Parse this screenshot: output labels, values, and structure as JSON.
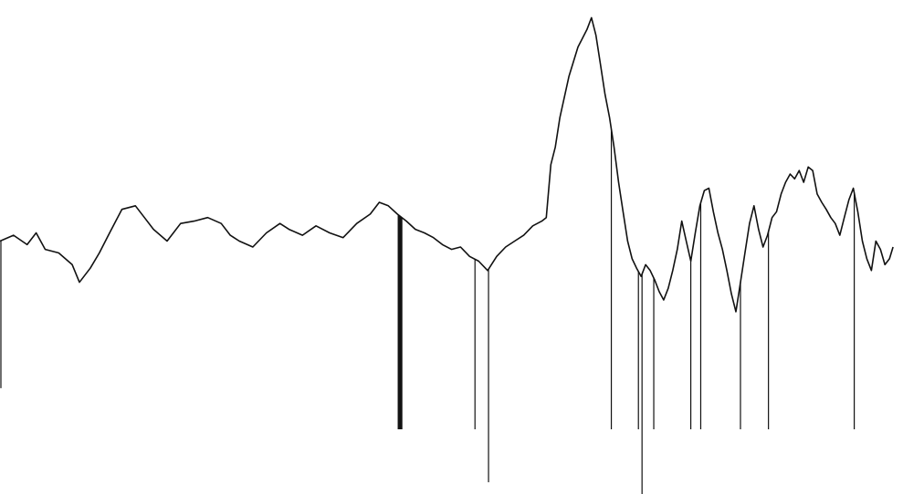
{
  "chart_data": {
    "type": "line",
    "title": "",
    "xlabel": "",
    "ylabel": "",
    "xlim": [
      0,
      1000
    ],
    "ylim": [
      -1.6,
      2.6
    ],
    "grid": false,
    "legend": "none",
    "colors": {
      "line": "#111111",
      "spike": "#111111",
      "background": "#ffffff"
    },
    "series": [
      {
        "x": [
          0,
          15,
          30,
          40,
          50,
          65,
          80,
          88,
          100,
          110,
          120,
          135,
          150,
          160,
          170,
          185,
          200,
          215,
          230,
          245,
          255,
          265,
          280,
          295,
          310,
          320,
          335,
          350,
          365,
          380,
          395,
          410,
          420,
          430,
          440,
          450,
          460,
          470,
          480,
          490,
          500,
          510,
          520,
          530,
          540,
          550,
          560,
          570,
          580,
          590,
          600,
          605,
          610,
          615,
          620,
          630,
          640,
          650,
          655,
          660,
          665,
          670,
          675,
          680,
          685,
          690,
          695,
          700,
          705,
          710,
          715,
          720,
          725,
          730,
          735,
          740,
          745,
          750,
          755,
          760,
          765,
          770,
          775,
          780,
          785,
          790,
          795,
          800,
          805,
          810,
          815,
          820,
          825,
          830,
          835,
          840,
          845,
          850,
          855,
          860,
          865,
          870,
          875,
          880,
          885,
          890,
          895,
          900,
          905,
          910,
          915,
          920,
          925,
          930,
          935,
          940,
          945,
          950,
          955,
          960,
          965,
          970,
          975,
          980,
          985,
          989
        ],
        "y": [
          0.55,
          0.6,
          0.52,
          0.62,
          0.48,
          0.45,
          0.35,
          0.2,
          0.32,
          0.45,
          0.6,
          0.82,
          0.85,
          0.75,
          0.65,
          0.55,
          0.7,
          0.72,
          0.75,
          0.7,
          0.6,
          0.55,
          0.5,
          0.62,
          0.7,
          0.65,
          0.6,
          0.68,
          0.62,
          0.58,
          0.7,
          0.78,
          0.88,
          0.85,
          0.78,
          0.72,
          0.65,
          0.62,
          0.58,
          0.52,
          0.48,
          0.5,
          0.42,
          0.38,
          0.3,
          0.42,
          0.5,
          0.55,
          0.6,
          0.68,
          0.72,
          0.75,
          1.2,
          1.35,
          1.6,
          1.95,
          2.2,
          2.35,
          2.45,
          2.3,
          2.05,
          1.8,
          1.6,
          1.35,
          1.05,
          0.8,
          0.55,
          0.4,
          0.32,
          0.25,
          0.35,
          0.3,
          0.22,
          0.12,
          0.05,
          0.15,
          0.3,
          0.48,
          0.72,
          0.55,
          0.38,
          0.62,
          0.85,
          0.98,
          1.0,
          0.8,
          0.62,
          0.48,
          0.3,
          0.1,
          -0.05,
          0.2,
          0.45,
          0.7,
          0.85,
          0.65,
          0.5,
          0.6,
          0.75,
          0.8,
          0.95,
          1.05,
          1.12,
          1.08,
          1.15,
          1.05,
          1.18,
          1.15,
          0.95,
          0.88,
          0.82,
          0.75,
          0.7,
          0.6,
          0.75,
          0.9,
          1.0,
          0.8,
          0.55,
          0.4,
          0.3,
          0.55,
          0.48,
          0.35,
          0.4,
          0.5
        ]
      }
    ],
    "spikes": [
      {
        "x": 1,
        "y": -0.7
      },
      {
        "x": 441,
        "y": -1.05
      },
      {
        "x": 442,
        "y": -1.05
      },
      {
        "x": 443,
        "y": -1.05
      },
      {
        "x": 444,
        "y": -1.05
      },
      {
        "x": 445,
        "y": -1.05
      },
      {
        "x": 526,
        "y": -1.05
      },
      {
        "x": 541,
        "y": -1.5
      },
      {
        "x": 677,
        "y": -1.05
      },
      {
        "x": 707,
        "y": -1.05
      },
      {
        "x": 711,
        "y": -1.6
      },
      {
        "x": 724,
        "y": -1.05
      },
      {
        "x": 765,
        "y": -1.05
      },
      {
        "x": 776,
        "y": -1.05
      },
      {
        "x": 820,
        "y": -1.05
      },
      {
        "x": 851,
        "y": -1.05
      },
      {
        "x": 946,
        "y": -1.05
      }
    ]
  }
}
